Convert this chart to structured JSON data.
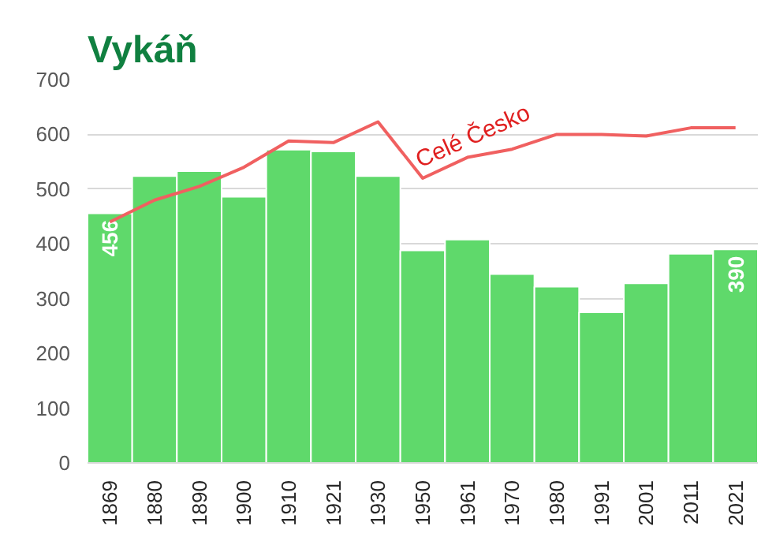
{
  "chart_data": {
    "type": "bar",
    "title": "Vykáň",
    "categories": [
      "1869",
      "1880",
      "1890",
      "1900",
      "1910",
      "1921",
      "1930",
      "1950",
      "1961",
      "1970",
      "1980",
      "1991",
      "2001",
      "2011",
      "2021"
    ],
    "series": [
      {
        "color": "#5fd96b",
        "values": [
          456,
          524,
          533,
          486,
          572,
          569,
          524,
          388,
          408,
          345,
          322,
          275,
          328,
          382,
          390
        ],
        "value_labels": [
          "456",
          null,
          null,
          null,
          null,
          null,
          null,
          null,
          null,
          null,
          null,
          null,
          null,
          null,
          "390"
        ]
      },
      {
        "type": "line",
        "name": "Celé Česko",
        "color": "#f06060",
        "values": [
          440,
          480,
          505,
          540,
          588,
          585,
          623,
          520,
          558,
          573,
          600,
          600,
          597,
          612,
          612
        ]
      }
    ],
    "ylim": [
      0,
      700
    ],
    "yticks": [
      0,
      100,
      200,
      300,
      400,
      500,
      600,
      700
    ],
    "grid": "y"
  }
}
